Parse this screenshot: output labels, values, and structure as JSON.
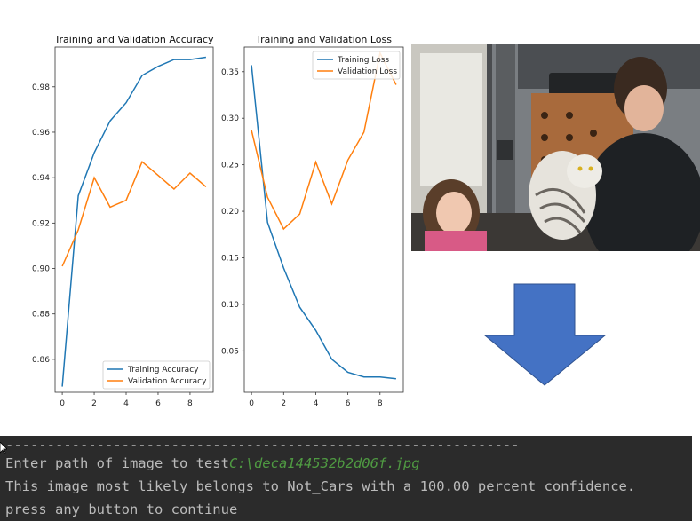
{
  "chart_data": [
    {
      "type": "line",
      "title": "Training and Validation Accuracy",
      "x": [
        0,
        1,
        2,
        3,
        4,
        5,
        6,
        7,
        8,
        9
      ],
      "xticks": [
        0,
        2,
        4,
        6,
        8
      ],
      "xlim": [
        -0.45,
        9.45
      ],
      "yticks": [
        0.86,
        0.88,
        0.9,
        0.92,
        0.94,
        0.96,
        0.98
      ],
      "ytick_labels": [
        "0.86",
        "0.88",
        "0.90",
        "0.92",
        "0.94",
        "0.96",
        "0.98"
      ],
      "ylim": [
        0.8455,
        0.9975
      ],
      "legend_position": "lower-right",
      "series": [
        {
          "name": "Training Accuracy",
          "color": "#1f77b4",
          "values": [
            0.848,
            0.932,
            0.951,
            0.965,
            0.973,
            0.985,
            0.989,
            0.992,
            0.992,
            0.993
          ]
        },
        {
          "name": "Validation Accuracy",
          "color": "#ff7f0e",
          "values": [
            0.901,
            0.917,
            0.94,
            0.927,
            0.93,
            0.947,
            0.941,
            0.935,
            0.942,
            0.936
          ]
        }
      ]
    },
    {
      "type": "line",
      "title": "Training and Validation Loss",
      "x": [
        0,
        1,
        2,
        3,
        4,
        5,
        6,
        7,
        8,
        9
      ],
      "xticks": [
        0,
        2,
        4,
        6,
        8
      ],
      "xlim": [
        -0.45,
        9.45
      ],
      "yticks": [
        0.05,
        0.1,
        0.15,
        0.2,
        0.25,
        0.3,
        0.35
      ],
      "ytick_labels": [
        "0.05",
        "0.10",
        "0.15",
        "0.20",
        "0.25",
        "0.30",
        "0.35"
      ],
      "ylim": [
        0.0055,
        0.3765
      ],
      "legend_position": "upper-right",
      "series": [
        {
          "name": "Training Loss",
          "color": "#1f77b4",
          "values": [
            0.357,
            0.188,
            0.139,
            0.097,
            0.072,
            0.041,
            0.027,
            0.022,
            0.022,
            0.02
          ]
        },
        {
          "name": "Validation Loss",
          "color": "#ff7f0e",
          "values": [
            0.287,
            0.215,
            0.181,
            0.197,
            0.253,
            0.208,
            0.255,
            0.285,
            0.37,
            0.336
          ]
        }
      ]
    }
  ],
  "photo": {
    "icon": "snowy-owl-photo",
    "colors": {
      "background": "#6a6e72",
      "board": "#a86a3c",
      "jacket": "#1e2124",
      "owl": "#e6e3dc",
      "girl_shirt": "#d85a86",
      "floor": "#3b3835"
    }
  },
  "arrow": {
    "icon": "down-arrow-icon",
    "fill": "#4472c4",
    "stroke": "#2f528f"
  },
  "terminal": {
    "separator": "--------------------------------------------------------------",
    "prompt": "Enter path of image to test",
    "path": "C:\\deca144532b2d06f.jpg",
    "result": "This image most likely belongs to Not_Cars with a 100.00 percent confidence.",
    "continue": "press any button to continue",
    "colors": {
      "background": "#2b2b2b",
      "text": "#bbbbbb",
      "path": "#4f9a42"
    }
  }
}
